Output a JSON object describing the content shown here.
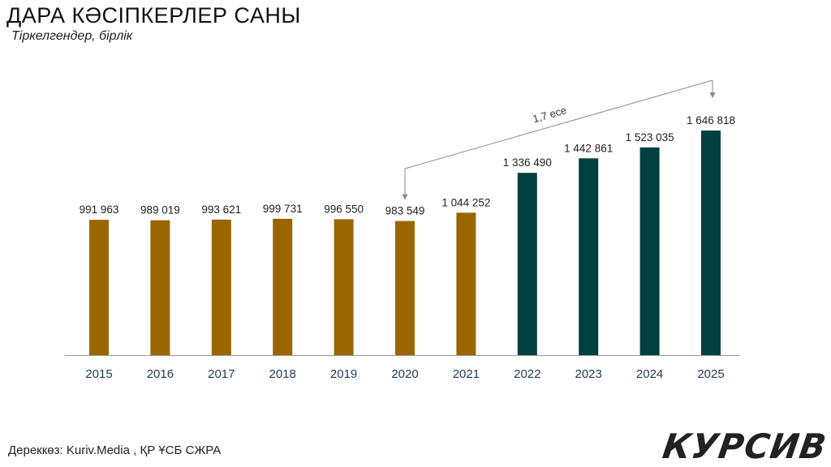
{
  "header": {
    "title": "ДАРА КӘСІПКЕРЛЕР САНЫ",
    "subtitle": "Тіркелгендер, бірлік"
  },
  "footer": {
    "source": "Дереккөз: Kuriv.Media , ҚР ҰСБ СЖРА",
    "logo": "КУРСИВ"
  },
  "colors": {
    "bar_early": "#9a6600",
    "bar_late": "#004040",
    "axis": "#999999",
    "tick_label": "#1f3a5a",
    "value_label": "#222222",
    "annotation": "#8a8a8a"
  },
  "chart_data": {
    "type": "bar",
    "title": "ДАРА КӘСІПКЕРЛЕР САНЫ",
    "subtitle": "Тіркелгендер, бірлік",
    "categories": [
      "2015",
      "2016",
      "2017",
      "2018",
      "2019",
      "2020",
      "2021",
      "2022",
      "2023",
      "2024",
      "2025"
    ],
    "values": [
      991963,
      989019,
      993621,
      999731,
      996550,
      983549,
      1044252,
      1336490,
      1442861,
      1523035,
      1646818
    ],
    "value_labels": [
      "991 963",
      "989 019",
      "993 621",
      "999 731",
      "996 550",
      "983 549",
      "1 044 252",
      "1 336 490",
      "1 442 861",
      "1 523 035",
      "1 646 818"
    ],
    "bar_color_index": [
      0,
      0,
      0,
      0,
      0,
      0,
      0,
      1,
      1,
      1,
      1
    ],
    "annotation": {
      "text": "1,7 есе",
      "from_category": "2020",
      "to_category": "2025"
    },
    "grid": false,
    "legend": "none"
  }
}
